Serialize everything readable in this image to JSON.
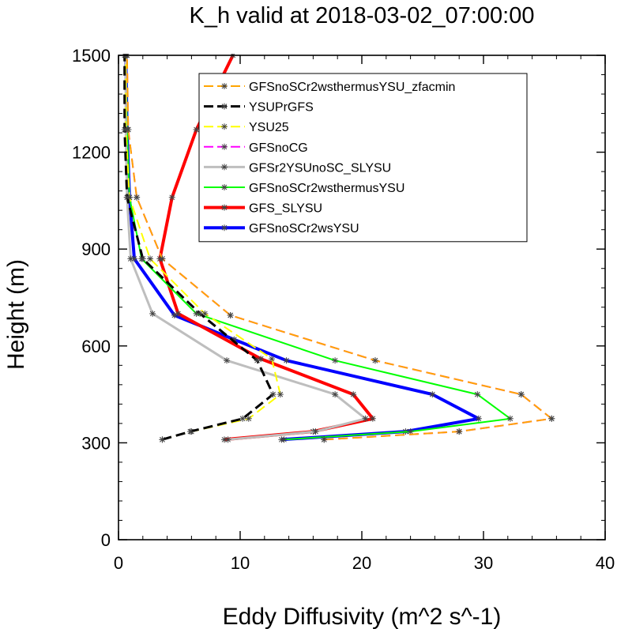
{
  "chart_data": {
    "type": "line",
    "title": "K_h valid at 2018-03-02_07:00:00",
    "xlabel": "Eddy Diffusivity (m^2 s^-1)",
    "ylabel": "Height (m)",
    "xlim": [
      0,
      40
    ],
    "ylim": [
      0,
      1500
    ],
    "xticks": [
      0,
      10,
      20,
      30,
      40
    ],
    "yticks": [
      0,
      300,
      600,
      900,
      1200,
      1500
    ],
    "xtick_labels": [
      "0",
      "10",
      "20",
      "30",
      "40"
    ],
    "ytick_labels": [
      "0",
      "300",
      "600",
      "900",
      "1200",
      "1500"
    ],
    "grid": false,
    "legend_position": "top-right",
    "series": [
      {
        "name": "GFSnoSCr2wsYSU",
        "color": "#0000ff",
        "style": "solid",
        "width": 4,
        "points": [
          [
            13.4,
            310
          ],
          [
            23.6,
            335
          ],
          [
            29.6,
            375
          ],
          [
            25.8,
            450
          ],
          [
            13.8,
            555
          ],
          [
            9.5,
            620
          ],
          [
            4.6,
            695
          ],
          [
            1.3,
            870
          ],
          [
            0.9,
            1060
          ],
          [
            0.7,
            1270
          ],
          [
            0.6,
            1500
          ]
        ]
      },
      {
        "name": "GFS_SLYSU",
        "color": "#ff0000",
        "style": "solid",
        "width": 4,
        "points": [
          [
            8.7,
            310
          ],
          [
            16.0,
            335
          ],
          [
            20.9,
            375
          ],
          [
            19.3,
            450
          ],
          [
            11.7,
            560
          ],
          [
            4.9,
            700
          ],
          [
            3.4,
            870
          ],
          [
            4.4,
            1060
          ],
          [
            6.4,
            1270
          ],
          [
            9.4,
            1500
          ]
        ]
      },
      {
        "name": "GFSnoSCr2wsthermusYSU",
        "color": "#00ff00",
        "style": "solid",
        "width": 2,
        "points": [
          [
            13.6,
            310
          ],
          [
            24.0,
            335
          ],
          [
            32.2,
            375
          ],
          [
            29.5,
            450
          ],
          [
            17.8,
            555
          ],
          [
            6.4,
            700
          ],
          [
            1.9,
            870
          ],
          [
            0.9,
            1060
          ],
          [
            0.7,
            1270
          ],
          [
            0.6,
            1500
          ]
        ]
      },
      {
        "name": "GFSr2YSUnoSC_SLYSU",
        "color": "#bebebe",
        "style": "solid",
        "width": 3,
        "points": [
          [
            9.0,
            310
          ],
          [
            16.2,
            335
          ],
          [
            20.3,
            375
          ],
          [
            17.8,
            450
          ],
          [
            8.9,
            555
          ],
          [
            2.8,
            700
          ],
          [
            1.0,
            870
          ],
          [
            0.7,
            1060
          ],
          [
            0.6,
            1270
          ],
          [
            0.6,
            1500
          ]
        ]
      },
      {
        "name": "GFSnoCG",
        "color": "#ff00ff",
        "style": "dashed",
        "width": 2,
        "points": [
          [
            16.9,
            310
          ],
          [
            28.0,
            335
          ],
          [
            35.6,
            375
          ],
          [
            33.1,
            450
          ],
          [
            21.1,
            555
          ],
          [
            9.2,
            695
          ],
          [
            3.6,
            870
          ],
          [
            1.5,
            1060
          ],
          [
            0.8,
            1270
          ],
          [
            0.7,
            1500
          ]
        ]
      },
      {
        "name": "YSU25",
        "color": "#ffff00",
        "style": "dashed",
        "width": 2,
        "points": [
          [
            3.6,
            310
          ],
          [
            6.0,
            335
          ],
          [
            10.7,
            375
          ],
          [
            13.3,
            450
          ],
          [
            12.6,
            560
          ],
          [
            7.1,
            700
          ],
          [
            2.6,
            870
          ],
          [
            0.9,
            1060
          ],
          [
            0.6,
            1270
          ],
          [
            0.6,
            1500
          ]
        ]
      },
      {
        "name": "YSUPrGFS",
        "color": "#000000",
        "style": "dashed",
        "width": 3,
        "points": [
          [
            3.6,
            310
          ],
          [
            5.9,
            335
          ],
          [
            10.2,
            375
          ],
          [
            12.7,
            450
          ],
          [
            11.4,
            555
          ],
          [
            6.7,
            700
          ],
          [
            2.0,
            870
          ],
          [
            0.7,
            1060
          ],
          [
            0.5,
            1270
          ],
          [
            0.5,
            1500
          ]
        ]
      },
      {
        "name": "GFSnoSCr2wsthermusYSU_zfacmin",
        "color": "#ffa500",
        "style": "dashed",
        "width": 2,
        "points": [
          [
            16.9,
            310
          ],
          [
            28.0,
            335
          ],
          [
            35.6,
            375
          ],
          [
            33.1,
            450
          ],
          [
            21.1,
            555
          ],
          [
            9.2,
            695
          ],
          [
            3.6,
            870
          ],
          [
            1.5,
            1060
          ],
          [
            0.8,
            1270
          ],
          [
            0.7,
            1500
          ]
        ]
      }
    ],
    "legend_order": [
      "GFSnoSCr2wsthermusYSU_zfacmin",
      "YSUPrGFS",
      "YSU25",
      "GFSnoCG",
      "GFSr2YSUnoSC_SLYSU",
      "GFSnoSCr2wsthermusYSU",
      "GFS_SLYSU",
      "GFSnoSCr2wsYSU"
    ]
  }
}
